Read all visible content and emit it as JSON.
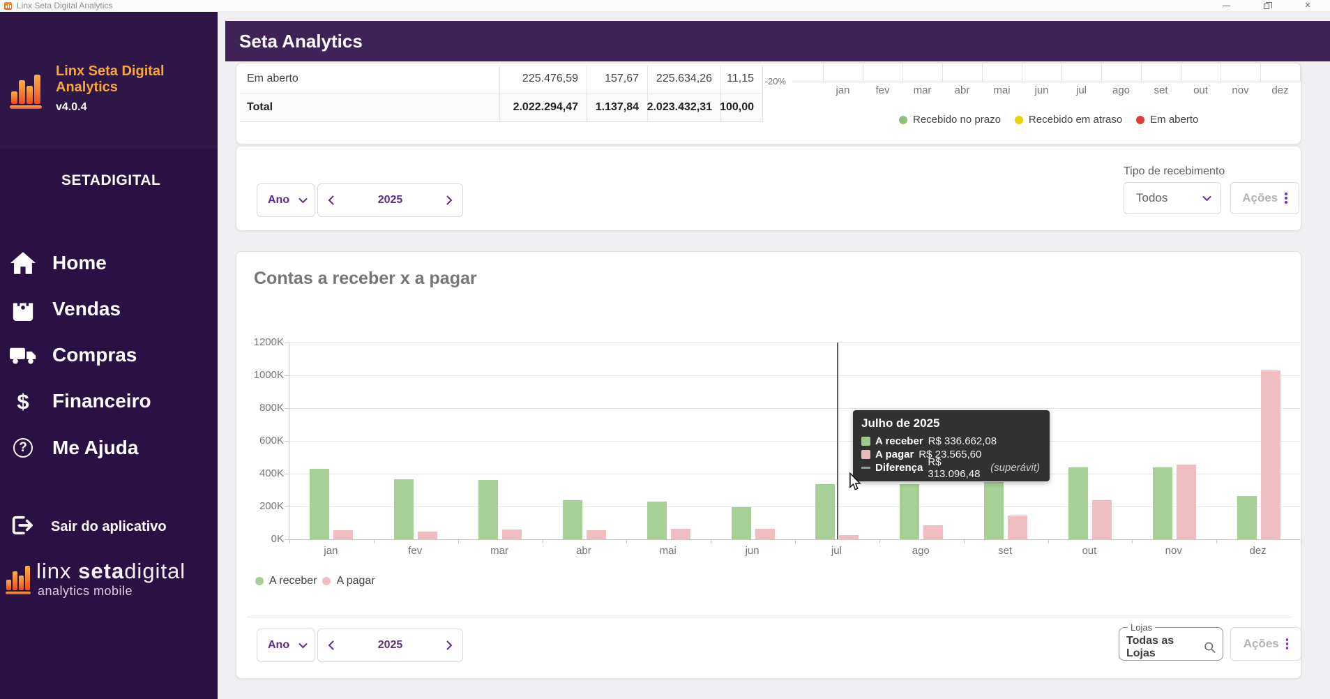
{
  "window": {
    "title": "Linx Seta Digital Analytics"
  },
  "sidebar": {
    "logo": {
      "line1": "Linx Seta Digital",
      "line2": "Analytics",
      "version": "v4.0.4"
    },
    "brand": "SETADIGITAL",
    "menu": [
      {
        "icon": "home-icon",
        "label": "Home"
      },
      {
        "icon": "shopping-bag-icon",
        "label": "Vendas"
      },
      {
        "icon": "truck-icon",
        "label": "Compras"
      },
      {
        "icon": "dollar-icon",
        "label": "Financeiro"
      },
      {
        "icon": "help-icon",
        "label": "Me Ajuda"
      }
    ],
    "exit_label": "Sair do aplicativo",
    "footer": {
      "brand_light1": "linx ",
      "brand_bold": "seta",
      "brand_light2": "digital",
      "subtitle": "analytics mobile"
    }
  },
  "header": {
    "title": "Seta Analytics"
  },
  "receivements": {
    "table": {
      "rows": [
        {
          "label": "Em aberto",
          "values": [
            "225.476,59",
            "157,67",
            "225.634,26",
            "11,15"
          ],
          "bold": false
        },
        {
          "label": "Total",
          "values": [
            "2.022.294,47",
            "1.137,84",
            "2.023.432,31",
            "100,00"
          ],
          "bold": true
        }
      ]
    },
    "mini_chart": {
      "y_label": "-20%",
      "months": [
        "jan",
        "fev",
        "mar",
        "abr",
        "mai",
        "jun",
        "jul",
        "ago",
        "set",
        "out",
        "nov",
        "dez"
      ],
      "legend": [
        {
          "label": "Recebido no prazo",
          "color": "#8fbe77"
        },
        {
          "label": "Recebido em atraso",
          "color": "#e8d200"
        },
        {
          "label": "Em aberto",
          "color": "#e23b3b"
        }
      ]
    },
    "period": {
      "mode": "Ano",
      "value": "2025"
    },
    "filter": {
      "label": "Tipo de recebimento",
      "value": "Todos"
    },
    "actions_label": "Ações"
  },
  "payables": {
    "title": "Contas a receber x a pagar",
    "chart_data": {
      "type": "bar",
      "title": "Contas a receber x a pagar",
      "categories": [
        "jan",
        "fev",
        "mar",
        "abr",
        "mai",
        "jun",
        "jul",
        "ago",
        "set",
        "out",
        "nov",
        "dez"
      ],
      "series": [
        {
          "name": "A receber",
          "color": "#a6d096",
          "values": [
            430000,
            365000,
            362000,
            240000,
            230000,
            196000,
            336662.08,
            335000,
            350000,
            438000,
            438000,
            265000
          ]
        },
        {
          "name": "A pagar",
          "color": "#f0bdc2",
          "values": [
            55000,
            45000,
            60000,
            55000,
            62000,
            65000,
            23565.6,
            85000,
            145000,
            240000,
            455000,
            1030000
          ]
        }
      ],
      "yticks": [
        "1200K",
        "1000K",
        "800K",
        "600K",
        "400K",
        "200K",
        "0K"
      ],
      "ylim": [
        0,
        1200000
      ],
      "grid": true,
      "legend_position": "bottom-left"
    },
    "tooltip": {
      "month_index": 6,
      "title": "Julho de 2025",
      "rows": [
        {
          "swatch": "#9cc98a",
          "label": "A receber",
          "value": "R$ 336.662,08"
        },
        {
          "swatch": "#eab8bd",
          "label": "A pagar",
          "value": "R$ 23.565,60"
        },
        {
          "swatch": "dash",
          "label": "Diferença",
          "value": "R$ 313.096,48",
          "note": "(superávit)"
        }
      ]
    },
    "period": {
      "mode": "Ano",
      "value": "2025"
    },
    "stores": {
      "label": "Lojas",
      "value": "Todas as Lojas"
    },
    "actions_label": "Ações"
  }
}
